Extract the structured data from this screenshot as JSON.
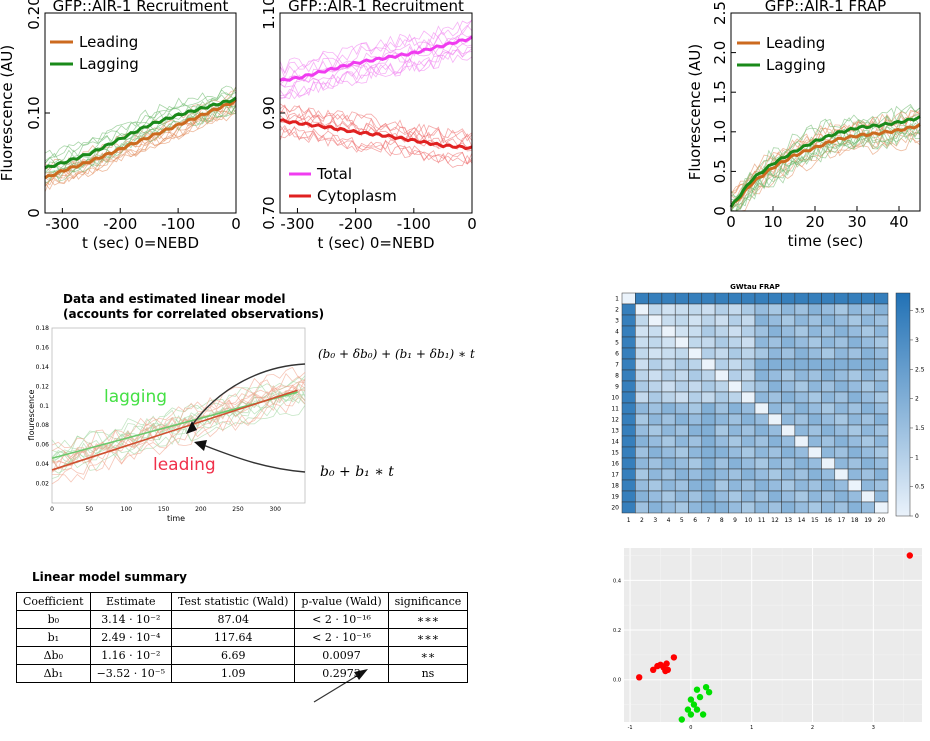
{
  "chart_data": [
    {
      "type": "line",
      "title": "GFP::AIR-1 Recruitment",
      "xlabel": "t (sec) 0=NEBD",
      "ylabel": "Fluorescence (AU)",
      "xlim": [
        -330,
        0
      ],
      "ylim": [
        0,
        0.2
      ],
      "xticks": [
        "-300",
        "-200",
        "-100",
        "0"
      ],
      "yticks": [
        "0",
        "0.10",
        "0.20"
      ],
      "legend": "top-left",
      "series": [
        {
          "name": "Leading",
          "color": "#cc6a1f",
          "x": [
            -330,
            -300,
            -250,
            -200,
            -150,
            -100,
            -50,
            0
          ],
          "y": [
            0.035,
            0.042,
            0.052,
            0.064,
            0.076,
            0.088,
            0.1,
            0.112
          ]
        },
        {
          "name": "Lagging",
          "color": "#1a8a1a",
          "x": [
            -330,
            -300,
            -250,
            -200,
            -150,
            -100,
            -50,
            0
          ],
          "y": [
            0.045,
            0.05,
            0.06,
            0.074,
            0.088,
            0.098,
            0.106,
            0.114
          ]
        }
      ]
    },
    {
      "type": "line",
      "title": "GFP::AIR-1 Recruitment",
      "xlabel": "t (sec) 0=NEBD",
      "xlim": [
        -330,
        0
      ],
      "ylim": [
        0.7,
        1.1
      ],
      "xticks": [
        "-300",
        "-200",
        "-100",
        "0"
      ],
      "yticks": [
        "0.70",
        "0.90",
        "1.10"
      ],
      "legend": "bottom-left",
      "series": [
        {
          "name": "Total",
          "color": "#f03cf0",
          "x": [
            -330,
            -300,
            -250,
            -200,
            -150,
            -100,
            -50,
            0
          ],
          "y": [
            0.965,
            0.97,
            0.985,
            1.0,
            1.01,
            1.02,
            1.035,
            1.05
          ]
        },
        {
          "name": "Cytoplasm",
          "color": "#e02020",
          "x": [
            -330,
            -300,
            -250,
            -200,
            -150,
            -100,
            -50,
            0
          ],
          "y": [
            0.885,
            0.88,
            0.872,
            0.862,
            0.855,
            0.845,
            0.835,
            0.83
          ]
        }
      ]
    },
    {
      "type": "line",
      "title": "GFP::AIR-1 FRAP",
      "xlabel": "time (sec)",
      "ylabel": "Fluorescence (AU)",
      "xlim": [
        0,
        45
      ],
      "ylim": [
        0,
        2.5
      ],
      "xticks": [
        "0",
        "10",
        "20",
        "30",
        "40"
      ],
      "yticks": [
        "0",
        "0.5",
        "1.0",
        "1.5",
        "2.0",
        "2.5"
      ],
      "legend": "top-left",
      "series": [
        {
          "name": "Leading",
          "color": "#cc6a1f",
          "x": [
            0,
            5,
            10,
            15,
            20,
            25,
            30,
            35,
            40,
            45
          ],
          "y": [
            0.05,
            0.35,
            0.55,
            0.7,
            0.8,
            0.9,
            0.95,
            0.98,
            1.02,
            1.08
          ]
        },
        {
          "name": "Lagging",
          "color": "#1a8a1a",
          "x": [
            0,
            5,
            10,
            15,
            20,
            25,
            30,
            35,
            40,
            45
          ],
          "y": [
            0.05,
            0.4,
            0.6,
            0.75,
            0.88,
            0.98,
            1.05,
            1.08,
            1.12,
            1.18
          ]
        }
      ]
    },
    {
      "type": "line",
      "title": "Data and estimated linear model (accounts for correlated observations)",
      "xlabel": "time",
      "ylabel": "flourescence",
      "xlim": [
        0,
        340
      ],
      "ylim": [
        0,
        0.18
      ],
      "xticks": [
        "0",
        "50",
        "100",
        "150",
        "200",
        "250",
        "300"
      ],
      "yticks": [
        "0.02",
        "0.04",
        "0.06",
        "0.08",
        "0.1",
        "0.12",
        "0.14",
        "0.16",
        "0.18"
      ],
      "annotations": [
        "lagging",
        "leading"
      ],
      "formula_lagging": "(b₀ + δb₀) + (b₁ + δb₁) ∗ t",
      "formula_leading": "b₀ + b₁ ∗ t",
      "series": [
        {
          "name": "lagging",
          "color": "#6cc86c",
          "x": [
            0,
            330
          ],
          "y": [
            0.046,
            0.114
          ]
        },
        {
          "name": "leading",
          "color": "#d05030",
          "x": [
            0,
            330
          ],
          "y": [
            0.034,
            0.116
          ]
        }
      ]
    },
    {
      "type": "heatmap",
      "title": "GWtau FRAP",
      "rows": [
        "1",
        "2",
        "3",
        "4",
        "5",
        "6",
        "7",
        "8",
        "9",
        "10",
        "11",
        "12",
        "13",
        "14",
        "15",
        "16",
        "17",
        "18",
        "19",
        "20"
      ],
      "cols": [
        "1",
        "2",
        "3",
        "4",
        "5",
        "6",
        "7",
        "8",
        "9",
        "10",
        "11",
        "12",
        "13",
        "14",
        "15",
        "16",
        "17",
        "18",
        "19",
        "20"
      ],
      "colorbar_ticks": [
        "0",
        "0.5",
        "1",
        "1.5",
        "2",
        "2.5",
        "3",
        "3.5"
      ],
      "value_range": [
        0,
        3.8
      ]
    },
    {
      "type": "scatter",
      "xlim": [
        -1.1,
        3.8
      ],
      "ylim": [
        -0.17,
        0.53
      ],
      "xticks": [
        "-1",
        "0",
        "1",
        "2",
        "3"
      ],
      "yticks": [
        "0.0",
        "0.2",
        "0.4"
      ],
      "series": [
        {
          "name": "",
          "color": "#ff0000",
          "x": [
            -0.85,
            -0.62,
            -0.55,
            -0.5,
            -0.45,
            -0.4,
            -0.38,
            -0.42,
            -0.28,
            3.6
          ],
          "y": [
            0.01,
            0.04,
            0.055,
            0.06,
            0.05,
            0.065,
            0.04,
            0.035,
            0.09,
            0.5
          ]
        },
        {
          "name": "",
          "color": "#00e000",
          "x": [
            -0.15,
            -0.05,
            0.0,
            0.05,
            0.1,
            0.15,
            0.2,
            0.25,
            0.3,
            0.1,
            0.0
          ],
          "y": [
            -0.16,
            -0.12,
            -0.14,
            -0.1,
            -0.12,
            -0.07,
            -0.14,
            -0.03,
            -0.05,
            -0.04,
            -0.08
          ]
        }
      ]
    }
  ],
  "table": {
    "title": "Linear model summary",
    "headers": [
      "Coefficient",
      "Estimate",
      "Test statistic (Wald)",
      "p-value (Wald)",
      "significance"
    ],
    "rows": [
      [
        "b₀",
        "3.14 · 10⁻²",
        "87.04",
        "< 2 · 10⁻¹⁶",
        "∗∗∗"
      ],
      [
        "b₁",
        "2.49 · 10⁻⁴",
        "117.64",
        "< 2 · 10⁻¹⁶",
        "∗∗∗"
      ],
      [
        "Δb₀",
        "1.16 · 10⁻²",
        "6.69",
        "0.0097",
        "∗∗"
      ],
      [
        "Δb₁",
        "−3.52 · 10⁻⁵",
        "1.09",
        "0.2973",
        "ns"
      ]
    ]
  }
}
